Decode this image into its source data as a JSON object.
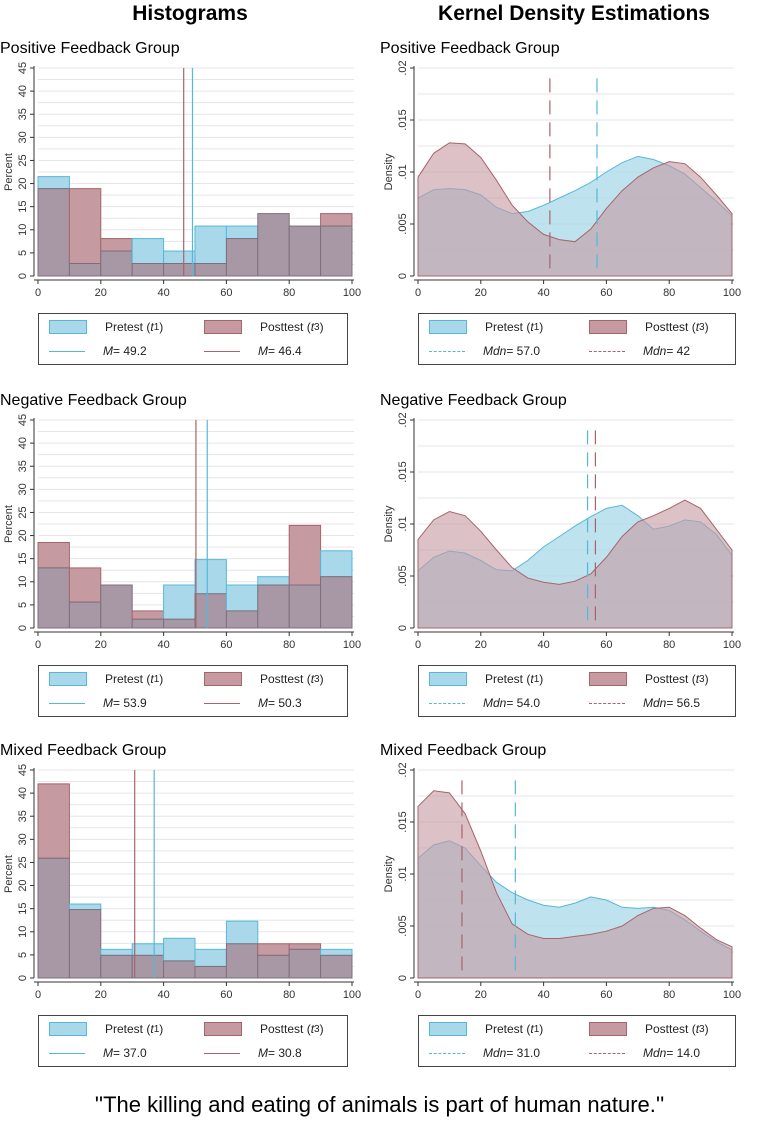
{
  "columns": {
    "left": "Histograms",
    "right": "Kernel Density Estimations"
  },
  "caption": "''The killing and eating of animals is part of human nature.''",
  "colors": {
    "pre_fill": "#a9d8ea",
    "pre_stroke": "#55b8d9",
    "post_fill": "#c59aa1",
    "post_stroke": "#a8646b",
    "overlap": "#a898a6",
    "grid": "#e6e6e6"
  },
  "chart_data": [
    {
      "type": "histogram",
      "title": "Positive Feedback Group",
      "ylabel": "Percent",
      "xlim": [
        0,
        100
      ],
      "ylim": [
        0,
        45
      ],
      "xticks": [
        "0",
        "20",
        "40",
        "60",
        "80",
        "100"
      ],
      "yticks": [
        "0",
        "5",
        "10",
        "15",
        "20",
        "25",
        "30",
        "35",
        "40",
        "45"
      ],
      "bins": [
        0,
        10,
        20,
        30,
        40,
        50,
        60,
        70,
        80,
        90,
        100
      ],
      "series": [
        {
          "name": "Pretest",
          "values": [
            21.5,
            2.7,
            5.4,
            8.1,
            5.4,
            10.8,
            10.8,
            13.5,
            10.8,
            10.8
          ]
        },
        {
          "name": "Posttest",
          "values": [
            18.9,
            18.9,
            8.1,
            2.7,
            2.7,
            2.7,
            8.1,
            13.5,
            10.8,
            13.5
          ]
        }
      ],
      "reference": [
        {
          "series": "Pretest",
          "value": 49.2
        },
        {
          "series": "Posttest",
          "value": 46.4
        }
      ],
      "legend": {
        "pre_label": "Pretest ( ",
        "post_label": "Posttest ( ",
        "pre_sub": "1",
        "post_sub": "3",
        "pre_stat": "M",
        "pre_val": " = 49.2",
        "post_stat": "M",
        "post_val": " = 46.4"
      }
    },
    {
      "type": "area",
      "title": "Positive Feedback Group",
      "ylabel": "Density",
      "xlim": [
        0,
        100
      ],
      "ylim": [
        0,
        0.02
      ],
      "xticks": [
        "0",
        "20",
        "40",
        "60",
        "80",
        "100"
      ],
      "yticks": [
        "0",
        ".005",
        ".01",
        ".015",
        ".02"
      ],
      "x": [
        0,
        5,
        10,
        15,
        20,
        25,
        30,
        35,
        40,
        45,
        50,
        55,
        60,
        65,
        70,
        75,
        80,
        85,
        90,
        95,
        100
      ],
      "series": [
        {
          "name": "Pretest",
          "values": [
            0.0075,
            0.0083,
            0.0084,
            0.0083,
            0.0078,
            0.0066,
            0.006,
            0.0062,
            0.0068,
            0.0075,
            0.0082,
            0.009,
            0.01,
            0.0109,
            0.0115,
            0.0112,
            0.0106,
            0.0098,
            0.0085,
            0.0072,
            0.0058
          ]
        },
        {
          "name": "Posttest",
          "values": [
            0.0095,
            0.0118,
            0.0128,
            0.0127,
            0.0114,
            0.0092,
            0.0068,
            0.0052,
            0.004,
            0.0035,
            0.0033,
            0.0045,
            0.0065,
            0.0082,
            0.0095,
            0.0104,
            0.011,
            0.0108,
            0.0095,
            0.0078,
            0.006
          ]
        }
      ],
      "reference": [
        {
          "series": "Pretest",
          "value": 57.0
        },
        {
          "series": "Posttest",
          "value": 42
        }
      ],
      "legend": {
        "pre_label": "Pretest (",
        "post_label": "Posttest (",
        "pre_sub": "1",
        "post_sub": "3",
        "pre_stat": "Mdn",
        "pre_val": " = 57.0",
        "post_stat": "Mdn",
        "post_val": " = 42"
      }
    },
    {
      "type": "histogram",
      "title": "Negative Feedback Group",
      "ylabel": "Percent",
      "xlim": [
        0,
        100
      ],
      "ylim": [
        0,
        45
      ],
      "xticks": [
        "0",
        "20",
        "40",
        "60",
        "80",
        "100"
      ],
      "yticks": [
        "0",
        "5",
        "10",
        "15",
        "20",
        "25",
        "30",
        "35",
        "40",
        "45"
      ],
      "bins": [
        0,
        10,
        20,
        30,
        40,
        50,
        60,
        70,
        80,
        90,
        100
      ],
      "series": [
        {
          "name": "Pretest",
          "values": [
            13,
            5.6,
            9.3,
            1.9,
            9.3,
            14.8,
            9.3,
            11.1,
            9.3,
            16.7
          ]
        },
        {
          "name": "Posttest",
          "values": [
            18.5,
            13,
            9.3,
            3.7,
            1.9,
            7.4,
            3.7,
            9.3,
            22.2,
            11.1
          ]
        }
      ],
      "reference": [
        {
          "series": "Pretest",
          "value": 53.9
        },
        {
          "series": "Posttest",
          "value": 50.3
        }
      ],
      "legend": {
        "pre_label": "Pretest ( ",
        "post_label": "Posttest ( ",
        "pre_sub": "1",
        "post_sub": "3",
        "pre_stat": "M",
        "pre_val": " = 53.9",
        "post_stat": "M",
        "post_val": " = 50.3"
      }
    },
    {
      "type": "area",
      "title": "Negative Feedback Group",
      "ylabel": "Density",
      "xlim": [
        0,
        100
      ],
      "ylim": [
        0,
        0.02
      ],
      "xticks": [
        "0",
        "20",
        "40",
        "60",
        "80",
        "100"
      ],
      "yticks": [
        "0",
        ".005",
        ".01",
        ".015",
        ".02"
      ],
      "x": [
        0,
        5,
        10,
        15,
        20,
        25,
        30,
        35,
        40,
        45,
        50,
        55,
        60,
        65,
        70,
        75,
        80,
        85,
        90,
        95,
        100
      ],
      "series": [
        {
          "name": "Pretest",
          "values": [
            0.0055,
            0.0068,
            0.0074,
            0.0072,
            0.0065,
            0.0056,
            0.0055,
            0.0065,
            0.0078,
            0.0088,
            0.0098,
            0.0107,
            0.0115,
            0.0118,
            0.0108,
            0.0095,
            0.0098,
            0.0104,
            0.0102,
            0.009,
            0.007
          ]
        },
        {
          "name": "Posttest",
          "values": [
            0.0085,
            0.0104,
            0.0112,
            0.0108,
            0.0093,
            0.0075,
            0.0058,
            0.0048,
            0.0044,
            0.0042,
            0.0045,
            0.0052,
            0.0068,
            0.0088,
            0.0102,
            0.0108,
            0.0115,
            0.0123,
            0.0115,
            0.0095,
            0.0075
          ]
        }
      ],
      "reference": [
        {
          "series": "Pretest",
          "value": 54.0
        },
        {
          "series": "Posttest",
          "value": 56.5
        }
      ],
      "legend": {
        "pre_label": "Pretest (",
        "post_label": "Posttest (",
        "pre_sub": "1",
        "post_sub": "3",
        "pre_stat": "Mdn",
        "pre_val": " = 54.0",
        "post_stat": "Mdn",
        "post_val": " = 56.5"
      }
    },
    {
      "type": "histogram",
      "title": "Mixed Feedback Group",
      "ylabel": "Percent",
      "xlim": [
        0,
        100
      ],
      "ylim": [
        0,
        45
      ],
      "xticks": [
        "0",
        "20",
        "40",
        "60",
        "80",
        "100"
      ],
      "yticks": [
        "0",
        "5",
        "10",
        "15",
        "20",
        "25",
        "30",
        "35",
        "40",
        "45"
      ],
      "bins": [
        0,
        10,
        20,
        30,
        40,
        50,
        60,
        70,
        80,
        90,
        100
      ],
      "series": [
        {
          "name": "Pretest",
          "values": [
            25.9,
            16,
            6.2,
            7.4,
            8.6,
            6.2,
            12.3,
            4.9,
            6.2,
            6.2
          ]
        },
        {
          "name": "Posttest",
          "values": [
            42,
            14.8,
            4.9,
            4.9,
            3.7,
            2.5,
            7.4,
            7.4,
            7.4,
            4.9
          ]
        }
      ],
      "reference": [
        {
          "series": "Pretest",
          "value": 37.0
        },
        {
          "series": "Posttest",
          "value": 30.8
        }
      ],
      "legend": {
        "pre_label": "Pretest ( ",
        "post_label": "Posttest ( ",
        "pre_sub": "1",
        "post_sub": "3",
        "pre_stat": "M",
        "pre_val": " = 37.0",
        "post_stat": "M",
        "post_val": " = 30.8"
      }
    },
    {
      "type": "area",
      "title": "Mixed Feedback Group",
      "ylabel": "Density",
      "xlim": [
        0,
        100
      ],
      "ylim": [
        0,
        0.02
      ],
      "xticks": [
        "0",
        "20",
        "40",
        "60",
        "80",
        "100"
      ],
      "yticks": [
        "0",
        ".005",
        ".01",
        ".015",
        ".02"
      ],
      "x": [
        0,
        5,
        10,
        15,
        20,
        25,
        30,
        35,
        40,
        45,
        50,
        55,
        60,
        65,
        70,
        75,
        80,
        85,
        90,
        95,
        100
      ],
      "series": [
        {
          "name": "Pretest",
          "values": [
            0.0115,
            0.0128,
            0.0132,
            0.0125,
            0.0108,
            0.0092,
            0.0082,
            0.0075,
            0.007,
            0.0068,
            0.0072,
            0.0078,
            0.0075,
            0.0068,
            0.0067,
            0.0068,
            0.0065,
            0.0056,
            0.0045,
            0.0035,
            0.0027
          ]
        },
        {
          "name": "Posttest",
          "values": [
            0.0165,
            0.018,
            0.0178,
            0.0158,
            0.0122,
            0.0082,
            0.0052,
            0.0042,
            0.0038,
            0.0038,
            0.004,
            0.0042,
            0.0045,
            0.005,
            0.006,
            0.0067,
            0.0068,
            0.006,
            0.0048,
            0.0037,
            0.003
          ]
        }
      ],
      "reference": [
        {
          "series": "Pretest",
          "value": 31.0
        },
        {
          "series": "Posttest",
          "value": 14.0
        }
      ],
      "legend": {
        "pre_label": "Pretest (",
        "post_label": "Posttest (",
        "pre_sub": "1",
        "post_sub": "3",
        "pre_stat": "Mdn",
        "pre_val": " = 31.0",
        "post_stat": "Mdn",
        "post_val": " = 14.0"
      }
    }
  ]
}
